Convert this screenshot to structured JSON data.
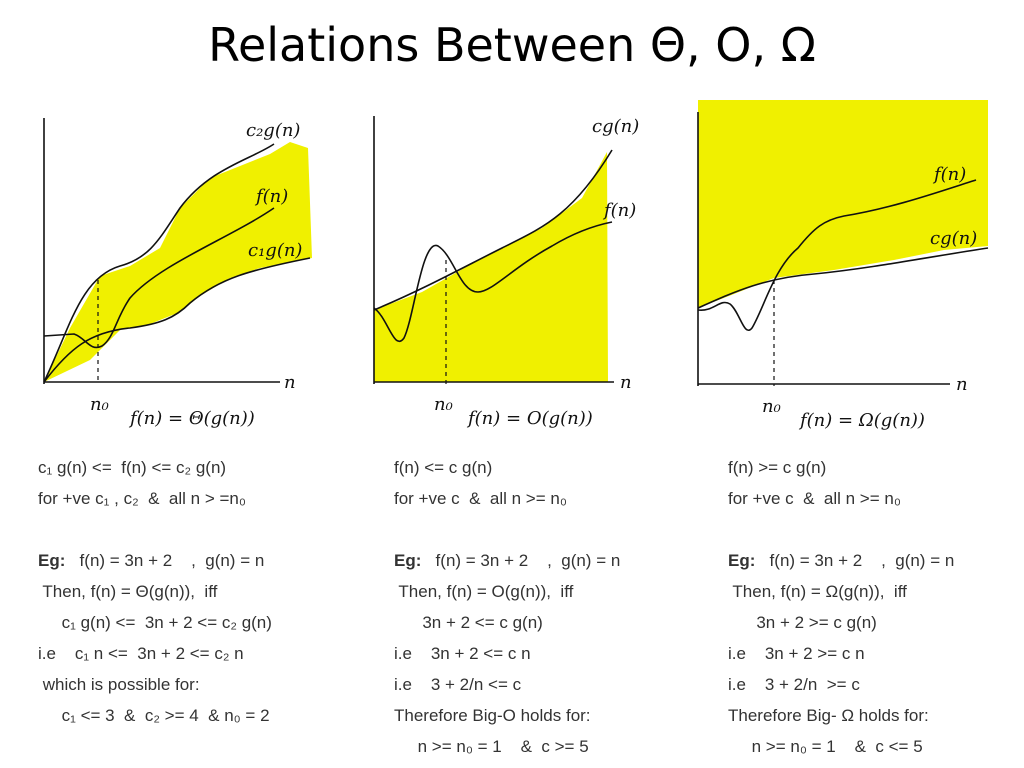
{
  "title": "Relations Between Θ, O, Ω",
  "panels": [
    {
      "upper_label": "c₂g(n)",
      "middle_label": "f(n)",
      "lower_label": "c₁g(n)",
      "axis_n": "n",
      "n0": "n₀",
      "relation": "f(n) = Θ(g(n))",
      "lines": [
        "c₁ g(n) <=  f(n) <= c₂ g(n)",
        "for +ve c₁ , c₂  &  all n > =n₀",
        "",
        "Eg:   f(n) = 3n + 2    ,  g(n) = n",
        " Then, f(n) = Θ(g(n)),  iff",
        "     c₁ g(n) <=  3n + 2 <= c₂ g(n)",
        "i.e    c₁ n <=  3n + 2 <= c₂ n",
        " which is possible for:",
        "     c₁ <= 3  &  c₂ >= 4  & n₀ = 2"
      ]
    },
    {
      "upper_label": "cg(n)",
      "middle_label": "f(n)",
      "axis_n": "n",
      "n0": "n₀",
      "relation": "f(n) = O(g(n))",
      "lines": [
        "f(n) <= c g(n)",
        "for +ve c  &  all n >= n₀",
        "",
        "Eg:   f(n) = 3n + 2    ,  g(n) = n",
        " Then, f(n) = O(g(n)),  iff",
        "      3n + 2 <= c g(n)",
        "i.e    3n + 2 <= c n",
        "i.e    3 + 2/n <= c",
        "Therefore Big-O holds for:",
        "     n >= n₀ = 1    &  c >= 5"
      ]
    },
    {
      "upper_label": "f(n)",
      "middle_label": "cg(n)",
      "axis_n": "n",
      "n0": "n₀",
      "relation": "f(n) = Ω(g(n))",
      "lines": [
        "f(n) >= c g(n)",
        "for +ve c  &  all n >= n₀",
        "",
        "Eg:   f(n) = 3n + 2    ,  g(n) = n",
        " Then, f(n) = Ω(g(n)),  iff",
        "      3n + 2 >= c g(n)",
        "i.e    3n + 2 >= c n",
        "i.e    3 + 2/n  >= c",
        "Therefore Big- Ω holds for:",
        "     n >= n₀ = 1    &  c <= 5"
      ]
    }
  ],
  "colors": {
    "fill": "#f0f000",
    "curve": "#111111"
  }
}
